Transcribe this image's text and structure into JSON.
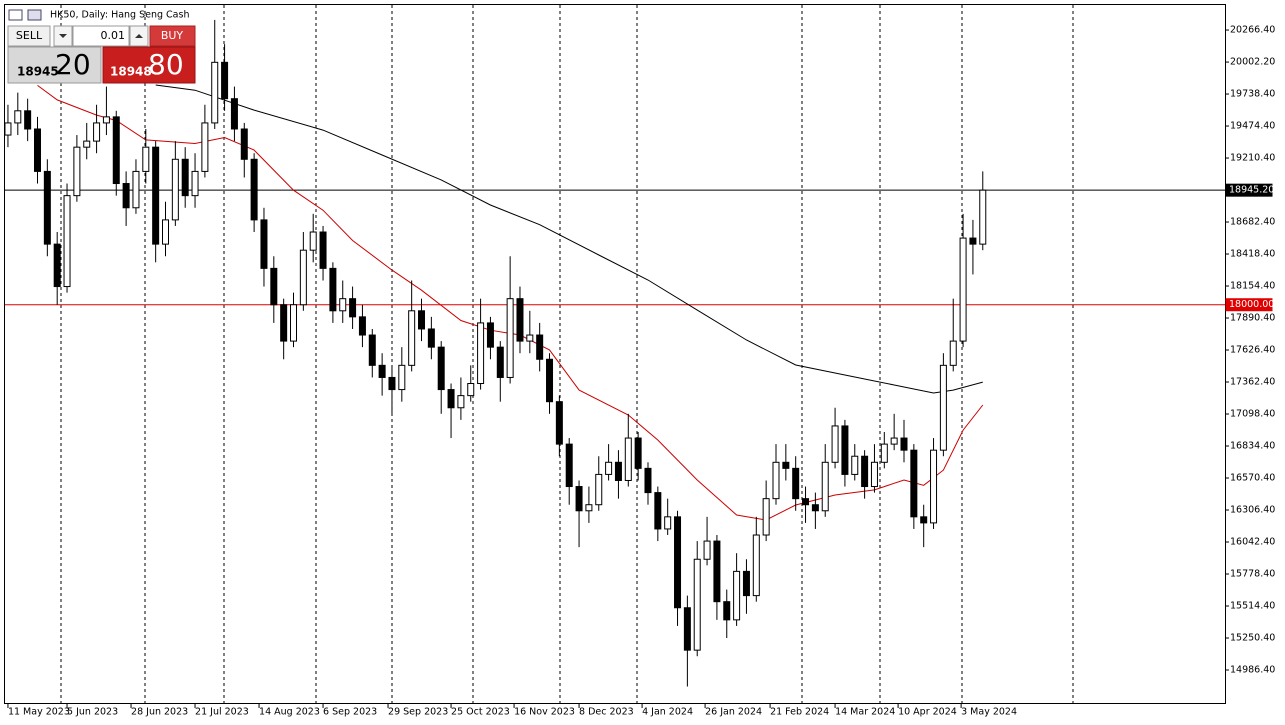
{
  "chart_data": {
    "type": "candlestick",
    "title": "HK50, Daily: Hang Seng Cash",
    "panel": {
      "sell_label": "SELL",
      "volume": "0.01",
      "buy_label": "BUY",
      "bid_main": "18945",
      "bid_big": "20",
      "ask_main": "18948",
      "ask_big": "80"
    },
    "up_color": "#ffffff",
    "down_color": "#000000",
    "open": [
      19400,
      19500,
      19600,
      19450,
      19100,
      18500,
      18150,
      18900,
      19300,
      19350,
      19500,
      19550,
      19000,
      18800,
      19100,
      19300,
      18500,
      18700,
      19200,
      18900,
      19100,
      19500,
      20000,
      19700,
      19450,
      19200,
      18700,
      18300,
      18000,
      17700,
      18000,
      18450,
      18600,
      18300,
      17950,
      18050,
      17900,
      17750,
      17500,
      17400,
      17300,
      17500,
      17950,
      17800,
      17650,
      17300,
      17150,
      17250,
      17350,
      17850,
      17650,
      17400,
      18050,
      17700,
      17750,
      17550,
      17200,
      16850,
      16500,
      16300,
      16350,
      16600,
      16700,
      16550,
      16900,
      16650,
      16450,
      16150,
      16250,
      15500,
      15150,
      15900,
      16050,
      15550,
      15400,
      15800,
      15600,
      16100,
      16400,
      16700,
      16650,
      16400,
      16350,
      16300,
      16700,
      17000,
      16600,
      16750,
      16500,
      16700,
      16850,
      16900,
      16800,
      16250,
      16200,
      16800,
      17500,
      17700,
      18550,
      18500
    ],
    "high": [
      19650,
      19750,
      19700,
      19550,
      19200,
      18600,
      19000,
      19400,
      19500,
      19650,
      19800,
      19600,
      19100,
      19200,
      19450,
      19350,
      18850,
      19350,
      19300,
      19250,
      19650,
      20350,
      20150,
      19800,
      19500,
      19250,
      18800,
      18400,
      18050,
      18100,
      18600,
      18750,
      18650,
      18350,
      18200,
      18150,
      18000,
      17800,
      17600,
      17500,
      17650,
      18200,
      18050,
      17900,
      17700,
      17350,
      17400,
      17500,
      18050,
      17900,
      17700,
      18400,
      18150,
      17950,
      17850,
      17600,
      17250,
      16900,
      16550,
      16500,
      16750,
      16850,
      16800,
      17100,
      16950,
      16700,
      16500,
      16400,
      16300,
      15600,
      16050,
      16250,
      16100,
      15650,
      15950,
      15900,
      16250,
      16550,
      16850,
      16850,
      16750,
      16500,
      16450,
      16850,
      17150,
      17050,
      16850,
      16800,
      16850,
      16950,
      17100,
      17050,
      16850,
      16350,
      16900,
      17600,
      18050,
      18750,
      18700,
      19100
    ],
    "low": [
      19300,
      19400,
      19350,
      19000,
      18400,
      18000,
      18100,
      18850,
      19200,
      19250,
      19400,
      18900,
      18650,
      18750,
      19000,
      18350,
      18400,
      18650,
      18800,
      18800,
      19050,
      19450,
      19600,
      19350,
      19050,
      18600,
      18150,
      17850,
      17550,
      17650,
      17950,
      18350,
      18200,
      17850,
      17850,
      17800,
      17650,
      17400,
      17250,
      17100,
      17200,
      17450,
      17700,
      17550,
      17100,
      16900,
      17050,
      17200,
      17300,
      17550,
      17200,
      17350,
      17600,
      17600,
      17450,
      17100,
      16750,
      16350,
      16000,
      16200,
      16300,
      16550,
      16400,
      16500,
      16550,
      16350,
      16050,
      16100,
      15350,
      14850,
      15100,
      15850,
      15400,
      15250,
      15350,
      15450,
      15550,
      16050,
      16350,
      16550,
      16300,
      16200,
      16150,
      16250,
      16650,
      16500,
      16550,
      16400,
      16450,
      16650,
      16800,
      16700,
      16150,
      16000,
      16150,
      16750,
      17450,
      17650,
      18250,
      18450
    ],
    "close": [
      19500,
      19600,
      19450,
      19100,
      18500,
      18150,
      18900,
      19300,
      19350,
      19500,
      19550,
      19000,
      18800,
      19100,
      19300,
      18500,
      18700,
      19200,
      18900,
      19100,
      19500,
      20000,
      19700,
      19450,
      19200,
      18700,
      18300,
      18000,
      17700,
      18000,
      18450,
      18600,
      18300,
      17950,
      18050,
      17900,
      17750,
      17500,
      17400,
      17300,
      17500,
      17950,
      17800,
      17650,
      17300,
      17150,
      17250,
      17350,
      17850,
      17650,
      17400,
      18050,
      17700,
      17750,
      17550,
      17200,
      16850,
      16500,
      16300,
      16350,
      16600,
      16700,
      16550,
      16900,
      16650,
      16450,
      16150,
      16250,
      15500,
      15150,
      15900,
      16050,
      15550,
      15400,
      15800,
      15600,
      16100,
      16400,
      16700,
      16650,
      16400,
      16350,
      16300,
      16700,
      17000,
      16600,
      16750,
      16500,
      16700,
      16850,
      16900,
      16800,
      16250,
      16200,
      16800,
      17500,
      17700,
      18550,
      18500,
      18945.2
    ],
    "lines": [
      {
        "color": "#cc0000",
        "x": [
          3,
          5,
          9,
          11,
          14,
          19,
          22,
          25,
          29,
          32,
          35,
          39,
          42,
          46,
          49,
          52,
          55,
          58,
          63,
          66,
          70,
          74,
          77,
          80,
          84,
          88,
          91,
          93,
          95,
          97,
          99
        ],
        "values": [
          19810,
          19690,
          19565,
          19520,
          19360,
          19330,
          19380,
          19276,
          18945,
          18780,
          18530,
          18286,
          18120,
          17870,
          17790,
          17750,
          17627,
          17296,
          17090,
          16884,
          16554,
          16265,
          16224,
          16348,
          16430,
          16472,
          16554,
          16510,
          16636,
          16966,
          17173
        ]
      },
      {
        "color": "#000000",
        "x": [
          15,
          19,
          25,
          32,
          38,
          44,
          49,
          54,
          60,
          65,
          70,
          75,
          80,
          85,
          90,
          94,
          96,
          99
        ],
        "values": [
          19813,
          19770,
          19606,
          19441,
          19235,
          19030,
          18823,
          18660,
          18410,
          18204,
          17956,
          17709,
          17503,
          17420,
          17338,
          17272,
          17296,
          17362
        ]
      }
    ],
    "hlines": [
      {
        "value": 18945.2,
        "label": "18945.20",
        "color": "#000000"
      },
      {
        "value": 18000,
        "label": "18000.00",
        "color": "#e00000"
      }
    ],
    "xlim": [
      -0.3,
      123.6
    ],
    "xticks": [
      {
        "value": 0,
        "label": "11 May 2023"
      },
      {
        "value": 6,
        "label": "5 Jun 2023"
      },
      {
        "value": 12.5,
        "label": "28 Jun 2023"
      },
      {
        "value": 19,
        "label": "21 Jul 2023"
      },
      {
        "value": 25.5,
        "label": "14 Aug 2023"
      },
      {
        "value": 32,
        "label": "6 Sep 2023"
      },
      {
        "value": 38.6,
        "label": "29 Sep 2023"
      },
      {
        "value": 45,
        "label": "25 Oct 2023"
      },
      {
        "value": 51.4,
        "label": "16 Nov 2023"
      },
      {
        "value": 58,
        "label": "8 Dec 2023"
      },
      {
        "value": 64.4,
        "label": "4 Jan 2024"
      },
      {
        "value": 70.8,
        "label": "26 Jan 2024"
      },
      {
        "value": 77.4,
        "label": "21 Feb 2024"
      },
      {
        "value": 84,
        "label": "14 Mar 2024"
      },
      {
        "value": 90.4,
        "label": "10 Apr 2024"
      },
      {
        "value": 96.8,
        "label": "3 May 2024"
      }
    ],
    "ylim": [
      14714,
      20473
    ],
    "yticks": [
      {
        "value": 20266.4,
        "label": "20266.40"
      },
      {
        "value": 20002.2,
        "label": "20002.20"
      },
      {
        "value": 19738.4,
        "label": "19738.40"
      },
      {
        "value": 19474.4,
        "label": "19474.40"
      },
      {
        "value": 19210.4,
        "label": "19210.40"
      },
      {
        "value": 18682.4,
        "label": "18682.40"
      },
      {
        "value": 18418.4,
        "label": "18418.40"
      },
      {
        "value": 18154.4,
        "label": "18154.40"
      },
      {
        "value": 17890.4,
        "label": "17890.40"
      },
      {
        "value": 17626.4,
        "label": "17626.40"
      },
      {
        "value": 17362.4,
        "label": "17362.40"
      },
      {
        "value": 17098.4,
        "label": "17098.40"
      },
      {
        "value": 16834.4,
        "label": "16834.40"
      },
      {
        "value": 16570.4,
        "label": "16570.40"
      },
      {
        "value": 16306.4,
        "label": "16306.40"
      },
      {
        "value": 16042.4,
        "label": "16042.40"
      },
      {
        "value": 15778.4,
        "label": "15778.40"
      },
      {
        "value": 15514.4,
        "label": "15514.40"
      },
      {
        "value": 15250.4,
        "label": "15250.40"
      },
      {
        "value": 14986.4,
        "label": "14986.40"
      }
    ]
  }
}
